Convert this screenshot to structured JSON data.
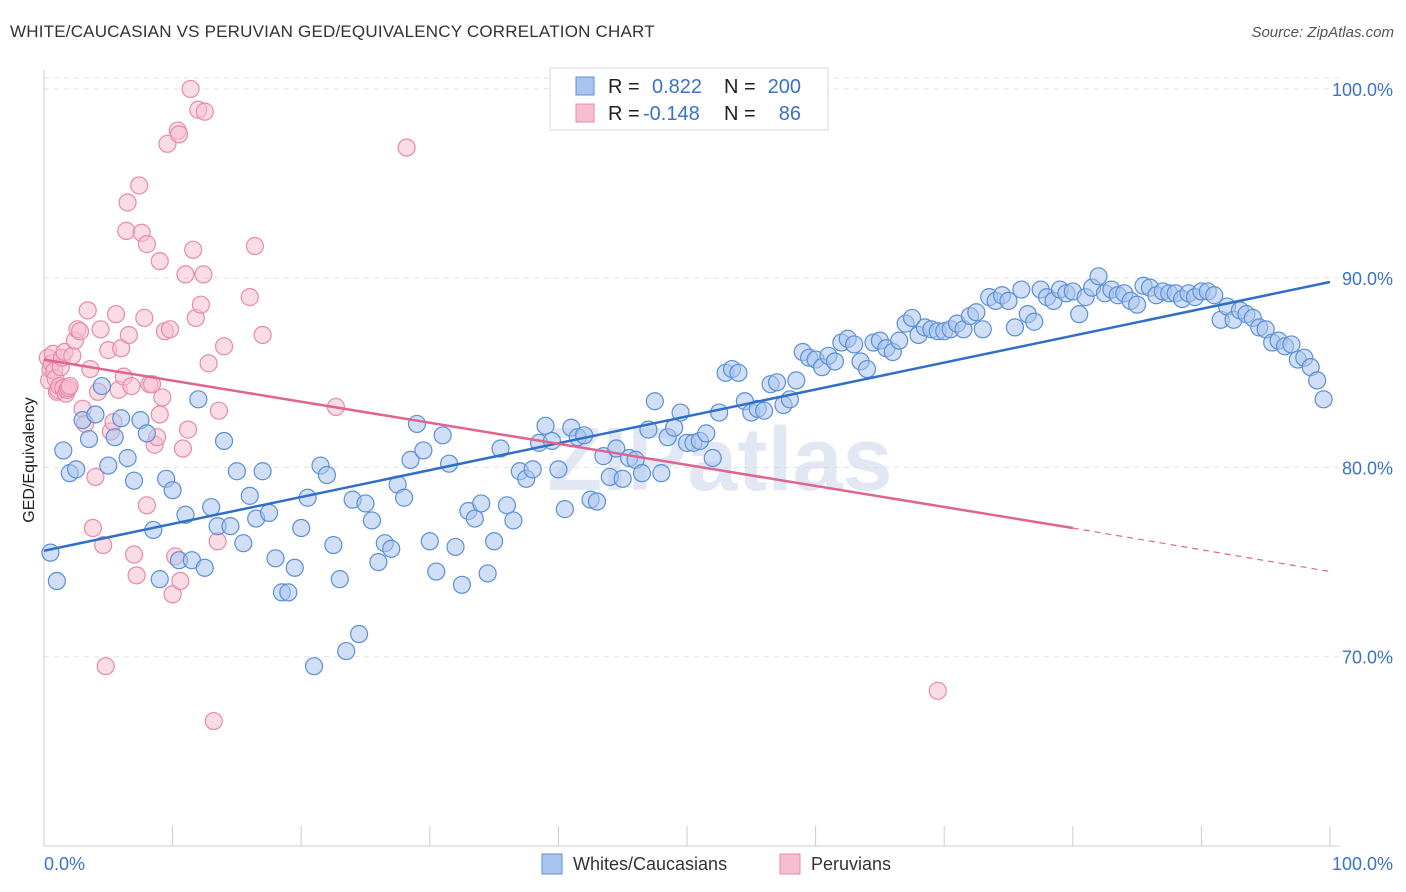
{
  "header": {
    "title": "WHITE/CAUCASIAN VS PERUVIAN GED/EQUIVALENCY CORRELATION CHART",
    "source": "Source: ZipAtlas.com"
  },
  "watermark": "ZIPatlas",
  "colors": {
    "blue": "#5b8fd6",
    "blue_fill": "#a9c5ee",
    "blue_line": "#2f6fc9",
    "pink": "#e88aa8",
    "pink_fill": "#f6bfd0",
    "pink_line": "#e0648e",
    "tick_text": "#3a72c8"
  },
  "legend": {
    "rows": [
      {
        "r_label": "R =",
        "r_value": "0.822",
        "n_label": "N =",
        "n_value": "200",
        "series": "blue"
      },
      {
        "r_label": "R =",
        "r_value": "-0.148",
        "n_label": "N =",
        "n_value": "86",
        "series": "pink"
      }
    ]
  },
  "chart_data": {
    "type": "scatter",
    "title": "WHITE/CAUCASIAN VS PERUVIAN GED/EQUIVALENCY CORRELATION CHART",
    "xlabel": "",
    "ylabel": "GED/Equivalency",
    "xlim": [
      0,
      100
    ],
    "ylim": [
      60,
      101
    ],
    "x_tick_labels": [
      "0.0%",
      "100.0%"
    ],
    "y_ticks": [
      70,
      80,
      90,
      100
    ],
    "y_tick_labels": [
      "70.0%",
      "80.0%",
      "90.0%",
      "100.0%"
    ],
    "grid": true,
    "legend_position": "top-center",
    "series": [
      {
        "name": "Whites/Caucasians",
        "color": "blue",
        "trend": {
          "x": [
            0,
            100
          ],
          "y": [
            75.6,
            89.8
          ]
        },
        "points": [
          [
            0.5,
            75.5
          ],
          [
            1,
            74
          ],
          [
            1.5,
            80.9
          ],
          [
            2,
            79.7
          ],
          [
            2.5,
            79.9
          ],
          [
            3,
            82.5
          ],
          [
            3.5,
            81.5
          ],
          [
            4,
            82.8
          ],
          [
            4.5,
            84.3
          ],
          [
            5,
            80.1
          ],
          [
            5.5,
            81.6
          ],
          [
            6,
            82.6
          ],
          [
            6.5,
            80.5
          ],
          [
            7,
            79.3
          ],
          [
            7.5,
            82.5
          ],
          [
            8,
            81.8
          ],
          [
            8.5,
            76.7
          ],
          [
            9,
            74.1
          ],
          [
            9.5,
            79.4
          ],
          [
            10,
            78.8
          ],
          [
            10.5,
            75.1
          ],
          [
            11,
            77.5
          ],
          [
            11.5,
            75.1
          ],
          [
            12,
            83.6
          ],
          [
            12.5,
            74.7
          ],
          [
            13,
            77.9
          ],
          [
            13.5,
            76.9
          ],
          [
            14,
            81.4
          ],
          [
            14.5,
            76.9
          ],
          [
            15,
            79.8
          ],
          [
            15.5,
            76
          ],
          [
            16,
            78.5
          ],
          [
            16.5,
            77.3
          ],
          [
            17,
            79.8
          ],
          [
            17.5,
            77.6
          ],
          [
            18,
            75.2
          ],
          [
            18.5,
            73.4
          ],
          [
            19,
            73.4
          ],
          [
            19.5,
            74.7
          ],
          [
            20,
            76.8
          ],
          [
            20.5,
            78.4
          ],
          [
            21,
            69.5
          ],
          [
            21.5,
            80.1
          ],
          [
            22,
            79.6
          ],
          [
            22.5,
            75.9
          ],
          [
            23,
            74.1
          ],
          [
            23.5,
            70.3
          ],
          [
            24,
            78.3
          ],
          [
            24.5,
            71.2
          ],
          [
            25,
            78.1
          ],
          [
            25.5,
            77.2
          ],
          [
            26,
            75
          ],
          [
            26.5,
            76
          ],
          [
            27,
            75.7
          ],
          [
            27.5,
            79.1
          ],
          [
            28,
            78.4
          ],
          [
            28.5,
            80.4
          ],
          [
            29,
            82.3
          ],
          [
            29.5,
            80.9
          ],
          [
            30,
            76.1
          ],
          [
            30.5,
            74.5
          ],
          [
            31,
            81.7
          ],
          [
            31.5,
            80.2
          ],
          [
            32,
            75.8
          ],
          [
            32.5,
            73.8
          ],
          [
            33,
            77.7
          ],
          [
            33.5,
            77.3
          ],
          [
            34,
            78.1
          ],
          [
            34.5,
            74.4
          ],
          [
            35,
            76.1
          ],
          [
            35.5,
            81
          ],
          [
            36,
            78
          ],
          [
            36.5,
            77.2
          ],
          [
            37,
            79.8
          ],
          [
            37.5,
            79.4
          ],
          [
            38,
            79.9
          ],
          [
            38.5,
            81.3
          ],
          [
            39,
            82.2
          ],
          [
            39.5,
            81.4
          ],
          [
            40,
            79.9
          ],
          [
            40.5,
            77.8
          ],
          [
            41,
            82.1
          ],
          [
            41.5,
            81.6
          ],
          [
            42,
            81.7
          ],
          [
            42.5,
            78.3
          ],
          [
            43,
            78.2
          ],
          [
            43.5,
            80.6
          ],
          [
            44,
            79.5
          ],
          [
            44.5,
            81
          ],
          [
            45,
            79.4
          ],
          [
            45.5,
            80.5
          ],
          [
            46,
            80.4
          ],
          [
            46.5,
            79.7
          ],
          [
            47,
            82
          ],
          [
            47.5,
            83.5
          ],
          [
            48,
            79.7
          ],
          [
            48.5,
            81.6
          ],
          [
            49,
            82.1
          ],
          [
            49.5,
            82.9
          ],
          [
            50,
            81.3
          ],
          [
            50.5,
            81.3
          ],
          [
            51,
            81.4
          ],
          [
            51.5,
            81.8
          ],
          [
            52,
            80.5
          ],
          [
            52.5,
            82.9
          ],
          [
            53,
            85
          ],
          [
            53.5,
            85.2
          ],
          [
            54,
            85
          ],
          [
            54.5,
            83.5
          ],
          [
            55,
            82.9
          ],
          [
            55.5,
            83.1
          ],
          [
            56,
            83
          ],
          [
            56.5,
            84.4
          ],
          [
            57,
            84.5
          ],
          [
            57.5,
            83.3
          ],
          [
            58,
            83.6
          ],
          [
            58.5,
            84.6
          ],
          [
            59,
            86.1
          ],
          [
            59.5,
            85.8
          ],
          [
            60,
            85.7
          ],
          [
            60.5,
            85.3
          ],
          [
            61,
            85.9
          ],
          [
            61.5,
            85.6
          ],
          [
            62,
            86.6
          ],
          [
            62.5,
            86.8
          ],
          [
            63,
            86.5
          ],
          [
            63.5,
            85.6
          ],
          [
            64,
            85.2
          ],
          [
            64.5,
            86.6
          ],
          [
            65,
            86.7
          ],
          [
            65.5,
            86.3
          ],
          [
            66,
            86.1
          ],
          [
            66.5,
            86.7
          ],
          [
            67,
            87.6
          ],
          [
            67.5,
            87.9
          ],
          [
            68,
            87
          ],
          [
            68.5,
            87.4
          ],
          [
            69,
            87.3
          ],
          [
            69.5,
            87.2
          ],
          [
            70,
            87.2
          ],
          [
            70.5,
            87.3
          ],
          [
            71,
            87.6
          ],
          [
            71.5,
            87.3
          ],
          [
            72,
            88
          ],
          [
            72.5,
            88.2
          ],
          [
            73,
            87.3
          ],
          [
            73.5,
            89
          ],
          [
            74,
            88.8
          ],
          [
            74.5,
            89.1
          ],
          [
            75,
            88.8
          ],
          [
            75.5,
            87.4
          ],
          [
            76,
            89.4
          ],
          [
            76.5,
            88.1
          ],
          [
            77,
            87.7
          ],
          [
            77.5,
            89.4
          ],
          [
            78,
            89
          ],
          [
            78.5,
            88.8
          ],
          [
            79,
            89.4
          ],
          [
            79.5,
            89.2
          ],
          [
            80,
            89.3
          ],
          [
            80.5,
            88.1
          ],
          [
            81,
            89
          ],
          [
            81.5,
            89.5
          ],
          [
            82,
            90.1
          ],
          [
            82.5,
            89.2
          ],
          [
            83,
            89.4
          ],
          [
            83.5,
            89.1
          ],
          [
            84,
            89.2
          ],
          [
            84.5,
            88.8
          ],
          [
            85,
            88.6
          ],
          [
            85.5,
            89.6
          ],
          [
            86,
            89.5
          ],
          [
            86.5,
            89.1
          ],
          [
            87,
            89.3
          ],
          [
            87.5,
            89.2
          ],
          [
            88,
            89.2
          ],
          [
            88.5,
            88.9
          ],
          [
            89,
            89.2
          ],
          [
            89.5,
            89
          ],
          [
            90,
            89.3
          ],
          [
            90.5,
            89.3
          ],
          [
            91,
            89.1
          ],
          [
            91.5,
            87.8
          ],
          [
            92,
            88.5
          ],
          [
            92.5,
            87.8
          ],
          [
            93,
            88.3
          ],
          [
            93.5,
            88.1
          ],
          [
            94,
            87.9
          ],
          [
            94.5,
            87.4
          ],
          [
            95,
            87.3
          ],
          [
            95.5,
            86.6
          ],
          [
            96,
            86.7
          ],
          [
            96.5,
            86.4
          ],
          [
            97,
            86.5
          ],
          [
            97.5,
            85.7
          ],
          [
            98,
            85.8
          ],
          [
            98.5,
            85.3
          ],
          [
            99,
            84.6
          ],
          [
            99.5,
            83.6
          ]
        ]
      },
      {
        "name": "Peruvians",
        "color": "pink",
        "trend": {
          "x": [
            0,
            80
          ],
          "y": [
            85.7,
            76.8
          ]
        },
        "trend_dashed": {
          "x": [
            80,
            100
          ],
          "y": [
            76.8,
            74.5
          ]
        },
        "points": [
          [
            0.3,
            85.8
          ],
          [
            0.4,
            84.6
          ],
          [
            0.5,
            85.2
          ],
          [
            0.6,
            85.5
          ],
          [
            0.7,
            86
          ],
          [
            0.8,
            85.1
          ],
          [
            0.9,
            84.7
          ],
          [
            1,
            84
          ],
          [
            1.1,
            84.1
          ],
          [
            1.2,
            84.3
          ],
          [
            1.3,
            85.3
          ],
          [
            1.4,
            85.8
          ],
          [
            1.5,
            84.2
          ],
          [
            1.6,
            86.1
          ],
          [
            1.7,
            83.9
          ],
          [
            1.8,
            84.1
          ],
          [
            1.9,
            84.2
          ],
          [
            2,
            84.3
          ],
          [
            2.2,
            85.9
          ],
          [
            2.4,
            86.7
          ],
          [
            2.6,
            87.3
          ],
          [
            2.8,
            87.2
          ],
          [
            3,
            83.1
          ],
          [
            3.2,
            82.3
          ],
          [
            3.4,
            88.3
          ],
          [
            3.6,
            85.2
          ],
          [
            3.8,
            76.8
          ],
          [
            4,
            79.5
          ],
          [
            4.2,
            84
          ],
          [
            4.4,
            87.3
          ],
          [
            4.6,
            75.9
          ],
          [
            4.8,
            69.5
          ],
          [
            5,
            86.2
          ],
          [
            5.2,
            81.9
          ],
          [
            5.4,
            82.4
          ],
          [
            5.6,
            88.1
          ],
          [
            5.8,
            84.1
          ],
          [
            6,
            86.3
          ],
          [
            6.2,
            84.8
          ],
          [
            6.4,
            92.5
          ],
          [
            6.6,
            87
          ],
          [
            6.8,
            84.3
          ],
          [
            7,
            75.4
          ],
          [
            7.2,
            74.3
          ],
          [
            7.4,
            94.9
          ],
          [
            7.6,
            92.4
          ],
          [
            7.8,
            87.9
          ],
          [
            8,
            78
          ],
          [
            8.2,
            84.4
          ],
          [
            8.4,
            84.4
          ],
          [
            8.6,
            81.2
          ],
          [
            8.8,
            81.6
          ],
          [
            9,
            82.8
          ],
          [
            9.2,
            83.7
          ],
          [
            9.4,
            87.2
          ],
          [
            9.6,
            97.1
          ],
          [
            9.8,
            87.3
          ],
          [
            10,
            73.3
          ],
          [
            10.2,
            75.3
          ],
          [
            10.4,
            97.8
          ],
          [
            10.6,
            74
          ],
          [
            10.8,
            81
          ],
          [
            11,
            90.2
          ],
          [
            11.2,
            82
          ],
          [
            11.4,
            100
          ],
          [
            11.6,
            91.5
          ],
          [
            11.8,
            87.9
          ],
          [
            12,
            98.9
          ],
          [
            12.2,
            88.6
          ],
          [
            12.4,
            90.2
          ],
          [
            12.8,
            85.5
          ],
          [
            13.2,
            66.6
          ],
          [
            13.6,
            83
          ],
          [
            14,
            86.4
          ],
          [
            16,
            89
          ],
          [
            16.4,
            91.7
          ],
          [
            17,
            87
          ],
          [
            22.7,
            83.2
          ],
          [
            28.2,
            96.9
          ],
          [
            69.5,
            68.2
          ],
          [
            9,
            90.9
          ],
          [
            8,
            91.8
          ],
          [
            6.5,
            94
          ],
          [
            10.5,
            97.6
          ],
          [
            12.5,
            98.8
          ],
          [
            13.5,
            76.1
          ]
        ]
      }
    ]
  },
  "bottom_legend": {
    "items": [
      {
        "label": "Whites/Caucasians",
        "series": "blue"
      },
      {
        "label": "Peruvians",
        "series": "pink"
      }
    ]
  }
}
